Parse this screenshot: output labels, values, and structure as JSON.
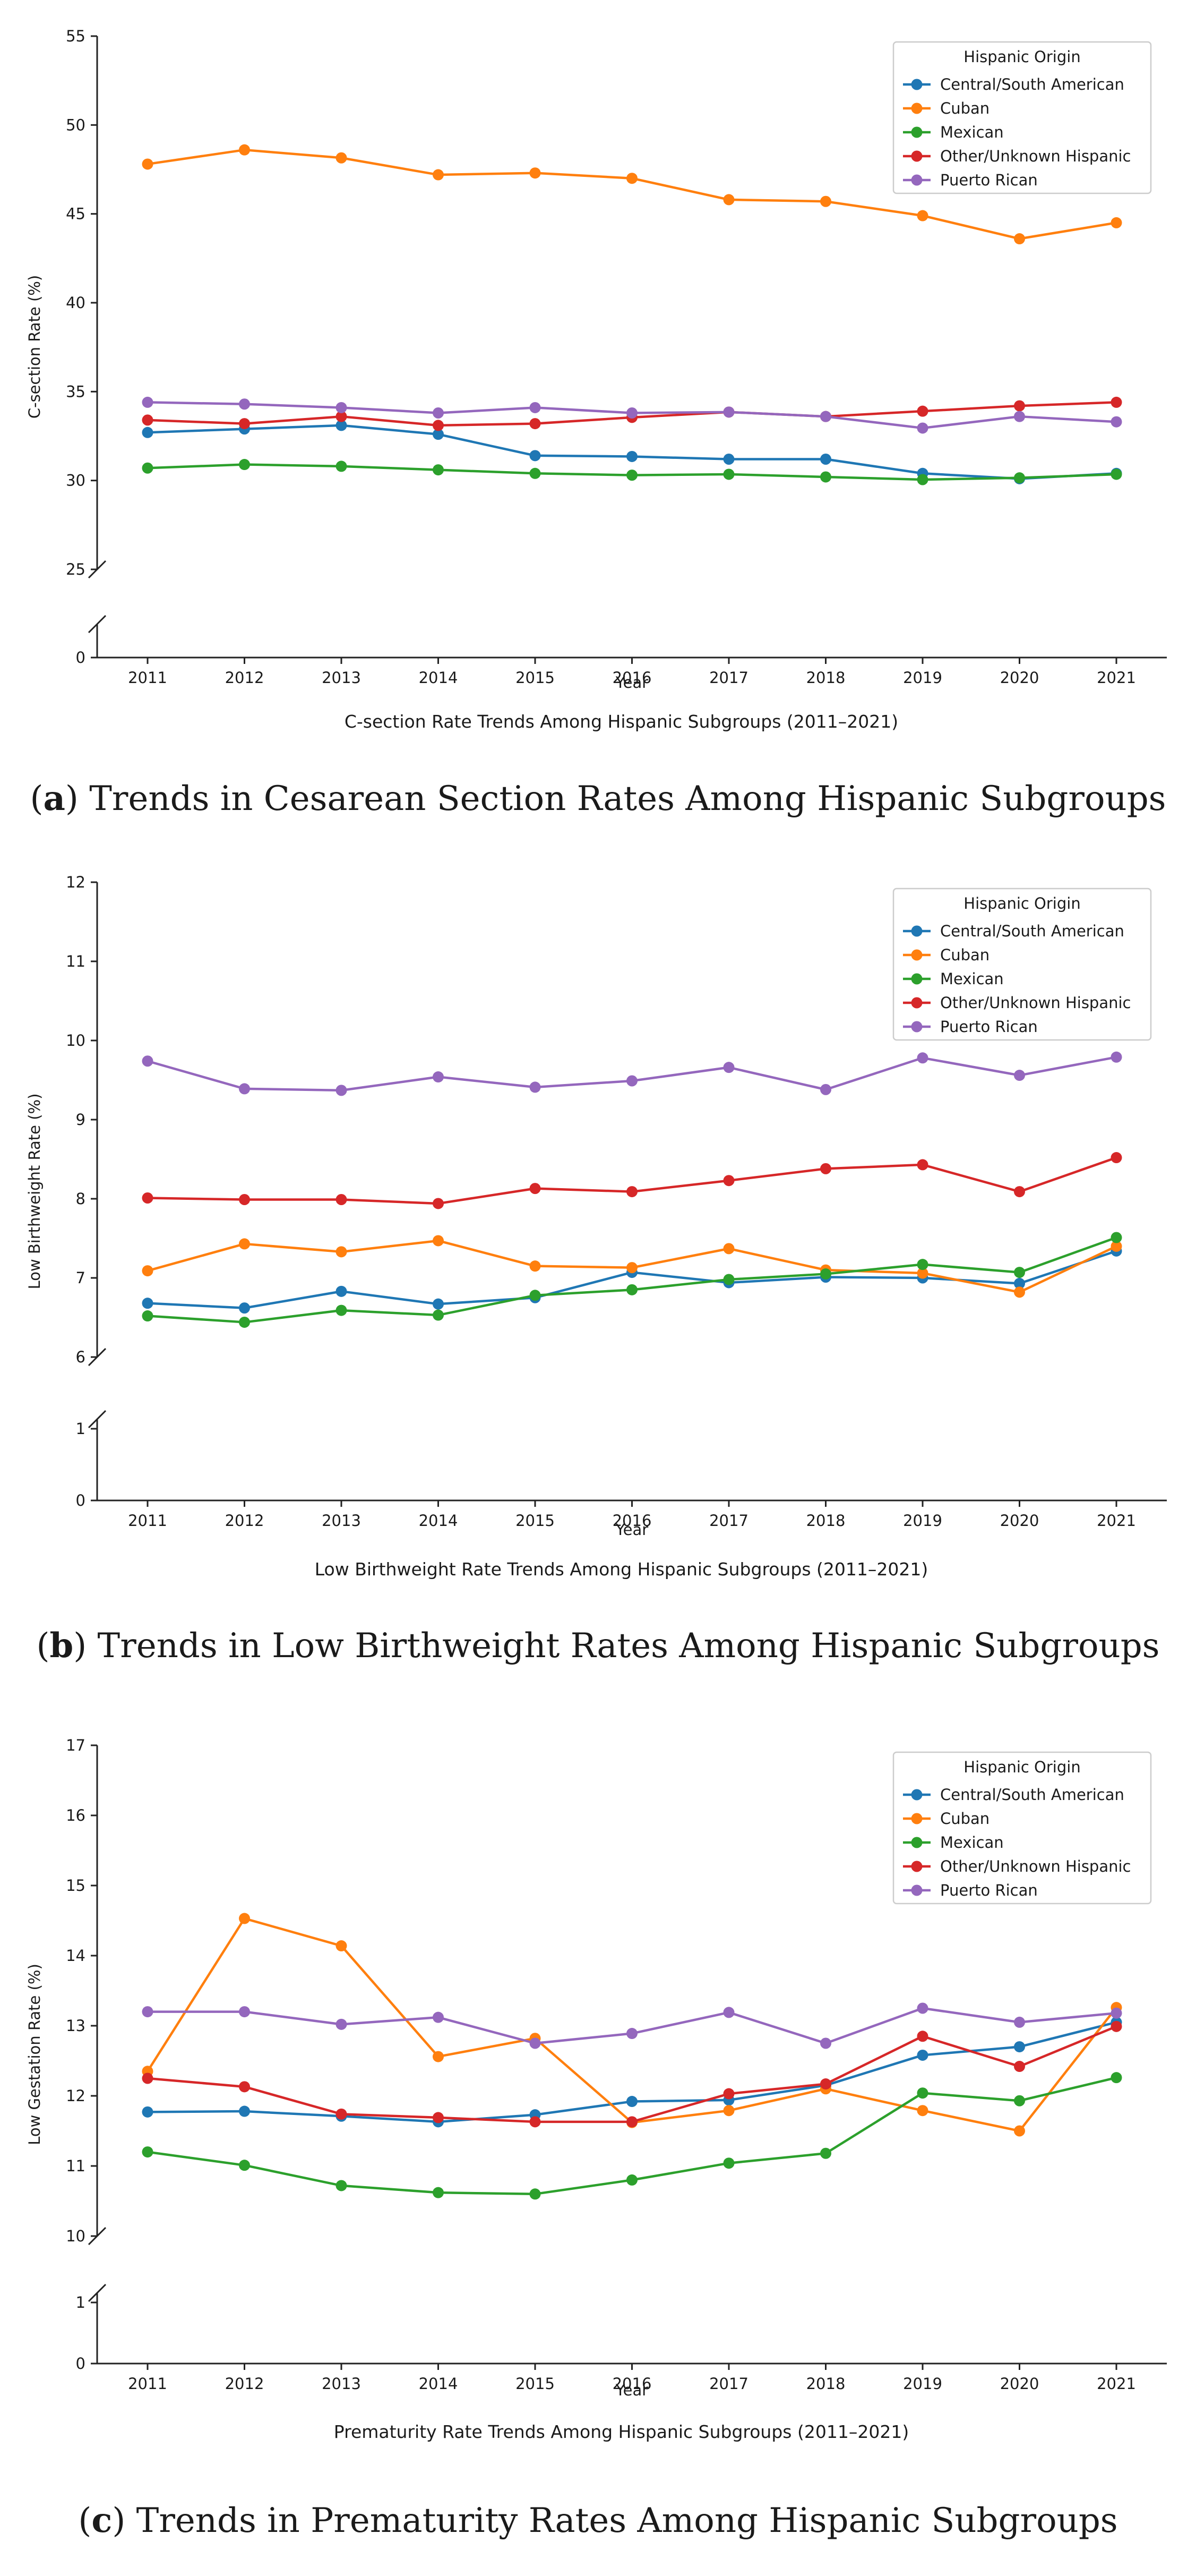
{
  "chart_data": [
    {
      "type": "line",
      "panel_caption_label": "a",
      "panel_caption_text": "Trends in Cesarean Section Rates Among Hispanic Subgroups",
      "title": "C-section Rate Trends Among Hispanic Subgroups (2011–2021)",
      "xlabel": "Year",
      "ylabel": "C-section Rate (%)",
      "x": [
        2011,
        2012,
        2013,
        2014,
        2015,
        2016,
        2017,
        2018,
        2019,
        2020,
        2021
      ],
      "x_tick_labels": [
        "2011",
        "2012",
        "2013",
        "2014",
        "2015",
        "2016",
        "2017",
        "2018",
        "2019",
        "2020",
        "2021"
      ],
      "ylim": [
        25,
        55
      ],
      "y_ticks": [
        25,
        30,
        35,
        40,
        45,
        50,
        55
      ],
      "y_tick_labels": [
        "25",
        "30",
        "35",
        "40",
        "45",
        "50",
        "55"
      ],
      "broken_axis_lower_tick": 0,
      "broken_axis_lower_tick_label": "0",
      "legend_title": "Hispanic Origin",
      "legend_position": "top-right",
      "series": [
        {
          "name": "Central/South American",
          "color": "#1f77b4",
          "values": [
            32.7,
            32.9,
            33.1,
            32.6,
            31.4,
            31.35,
            31.2,
            31.2,
            30.4,
            30.1,
            30.4
          ]
        },
        {
          "name": "Cuban",
          "color": "#ff7f0e",
          "values": [
            47.8,
            48.6,
            48.15,
            47.2,
            47.3,
            47.0,
            45.8,
            45.7,
            44.9,
            43.6,
            44.5
          ]
        },
        {
          "name": "Mexican",
          "color": "#2ca02c",
          "values": [
            30.7,
            30.9,
            30.8,
            30.6,
            30.4,
            30.3,
            30.35,
            30.2,
            30.05,
            30.15,
            30.35
          ]
        },
        {
          "name": "Other/Unknown Hispanic",
          "color": "#d62728",
          "values": [
            33.4,
            33.2,
            33.6,
            33.1,
            33.2,
            33.55,
            33.85,
            33.6,
            33.9,
            34.2,
            34.4
          ]
        },
        {
          "name": "Puerto Rican",
          "color": "#9467bd",
          "values": [
            34.4,
            34.3,
            34.1,
            33.8,
            34.1,
            33.8,
            33.85,
            33.6,
            32.95,
            33.6,
            33.3
          ]
        }
      ]
    },
    {
      "type": "line",
      "panel_caption_label": "b",
      "panel_caption_text": "Trends in Low Birthweight Rates Among Hispanic Subgroups",
      "title": "Low Birthweight Rate Trends Among Hispanic Subgroups (2011–2021)",
      "xlabel": "Year",
      "ylabel": "Low Birthweight Rate (%)",
      "x": [
        2011,
        2012,
        2013,
        2014,
        2015,
        2016,
        2017,
        2018,
        2019,
        2020,
        2021
      ],
      "x_tick_labels": [
        "2011",
        "2012",
        "2013",
        "2014",
        "2015",
        "2016",
        "2017",
        "2018",
        "2019",
        "2020",
        "2021"
      ],
      "ylim": [
        6,
        12
      ],
      "y_ticks": [
        6,
        7,
        8,
        9,
        10,
        11,
        12
      ],
      "y_tick_labels": [
        "6",
        "7",
        "8",
        "9",
        "10",
        "11",
        "12"
      ],
      "lower_ylim": [
        0,
        1
      ],
      "lower_y_ticks": [
        0,
        1
      ],
      "lower_y_tick_labels": [
        "0",
        "1"
      ],
      "legend_title": "Hispanic Origin",
      "legend_position": "top-right",
      "series": [
        {
          "name": "Central/South American",
          "color": "#1f77b4",
          "values": [
            6.68,
            6.62,
            6.83,
            6.67,
            6.75,
            7.07,
            6.94,
            7.01,
            7.0,
            6.93,
            7.34
          ]
        },
        {
          "name": "Cuban",
          "color": "#ff7f0e",
          "values": [
            7.09,
            7.43,
            7.33,
            7.47,
            7.15,
            7.13,
            7.37,
            7.1,
            7.06,
            6.82,
            7.4
          ]
        },
        {
          "name": "Mexican",
          "color": "#2ca02c",
          "values": [
            6.52,
            6.44,
            6.59,
            6.53,
            6.78,
            6.85,
            6.98,
            7.05,
            7.17,
            7.07,
            7.51
          ]
        },
        {
          "name": "Other/Unknown Hispanic",
          "color": "#d62728",
          "values": [
            8.01,
            7.99,
            7.99,
            7.94,
            8.13,
            8.09,
            8.23,
            8.38,
            8.43,
            8.09,
            8.52
          ]
        },
        {
          "name": "Puerto Rican",
          "color": "#9467bd",
          "values": [
            9.74,
            9.39,
            9.37,
            9.54,
            9.41,
            9.49,
            9.66,
            9.38,
            9.78,
            9.56,
            9.79
          ]
        }
      ]
    },
    {
      "type": "line",
      "panel_caption_label": "c",
      "panel_caption_text": "Trends in Prematurity Rates Among Hispanic Subgroups",
      "title": "Prematurity Rate Trends Among Hispanic Subgroups (2011–2021)",
      "xlabel": "Year",
      "ylabel": "Low Gestation Rate (%)",
      "x": [
        2011,
        2012,
        2013,
        2014,
        2015,
        2016,
        2017,
        2018,
        2019,
        2020,
        2021
      ],
      "x_tick_labels": [
        "2011",
        "2012",
        "2013",
        "2014",
        "2015",
        "2016",
        "2017",
        "2018",
        "2019",
        "2020",
        "2021"
      ],
      "ylim": [
        10,
        17
      ],
      "y_ticks": [
        10,
        11,
        12,
        13,
        14,
        15,
        16,
        17
      ],
      "y_tick_labels": [
        "10",
        "11",
        "12",
        "13",
        "14",
        "15",
        "16",
        "17"
      ],
      "lower_ylim": [
        0,
        1
      ],
      "lower_y_ticks": [
        0,
        1
      ],
      "lower_y_tick_labels": [
        "0",
        "1"
      ],
      "legend_title": "Hispanic Origin",
      "legend_position": "top-right",
      "series": [
        {
          "name": "Central/South American",
          "color": "#1f77b4",
          "values": [
            11.77,
            11.78,
            11.71,
            11.63,
            11.73,
            11.92,
            11.94,
            12.15,
            12.58,
            12.7,
            13.05
          ]
        },
        {
          "name": "Cuban",
          "color": "#ff7f0e",
          "values": [
            12.35,
            14.53,
            14.14,
            12.56,
            12.82,
            11.62,
            11.79,
            12.1,
            11.79,
            11.5,
            13.26
          ]
        },
        {
          "name": "Mexican",
          "color": "#2ca02c",
          "values": [
            11.2,
            11.01,
            10.72,
            10.62,
            10.6,
            10.8,
            11.04,
            11.18,
            12.04,
            11.93,
            12.26
          ]
        },
        {
          "name": "Other/Unknown Hispanic",
          "color": "#d62728",
          "values": [
            12.25,
            12.13,
            11.74,
            11.69,
            11.63,
            11.63,
            12.03,
            12.17,
            12.85,
            12.42,
            12.99
          ]
        },
        {
          "name": "Puerto Rican",
          "color": "#9467bd",
          "values": [
            13.2,
            13.2,
            13.02,
            13.12,
            12.75,
            12.89,
            13.19,
            12.75,
            13.25,
            13.05,
            13.18
          ]
        }
      ]
    }
  ]
}
